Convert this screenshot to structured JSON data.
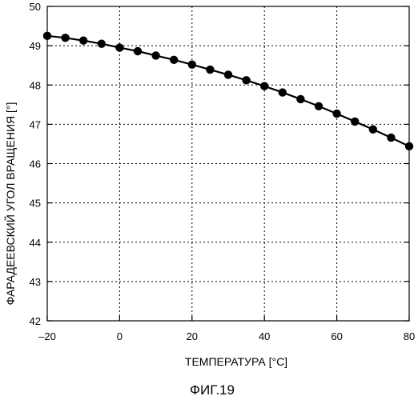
{
  "chart_data": {
    "type": "line",
    "xlabel": "ТЕМПЕРАТУРА [°C]",
    "ylabel": "ФАРАДЕЕВСКИЙ УГОЛ ВРАЩЕНИЯ [°]",
    "caption": "ФИГ.19",
    "xlim": [
      -20,
      80
    ],
    "ylim": [
      42,
      50
    ],
    "xticks": [
      -20,
      0,
      20,
      40,
      60,
      80
    ],
    "yticks": [
      42,
      43,
      44,
      45,
      46,
      47,
      48,
      49,
      50
    ],
    "x_tick_labels": [
      "–20",
      "0",
      "20",
      "40",
      "60",
      "80"
    ],
    "y_tick_labels": [
      "42",
      "43",
      "44",
      "45",
      "46",
      "47",
      "48",
      "49",
      "50"
    ],
    "grid": true,
    "grid_style": "dotted",
    "series": [
      {
        "color": "#000000",
        "marker": "filled-circle",
        "x": [
          -20,
          -15,
          -10,
          -5,
          0,
          5,
          10,
          15,
          20,
          25,
          30,
          35,
          40,
          45,
          50,
          55,
          60,
          65,
          70,
          75,
          80
        ],
        "y": [
          49.25,
          49.2,
          49.13,
          49.05,
          48.95,
          48.86,
          48.75,
          48.64,
          48.52,
          48.39,
          48.26,
          48.12,
          47.97,
          47.81,
          47.64,
          47.46,
          47.27,
          47.07,
          46.87,
          46.66,
          46.44
        ]
      }
    ]
  }
}
